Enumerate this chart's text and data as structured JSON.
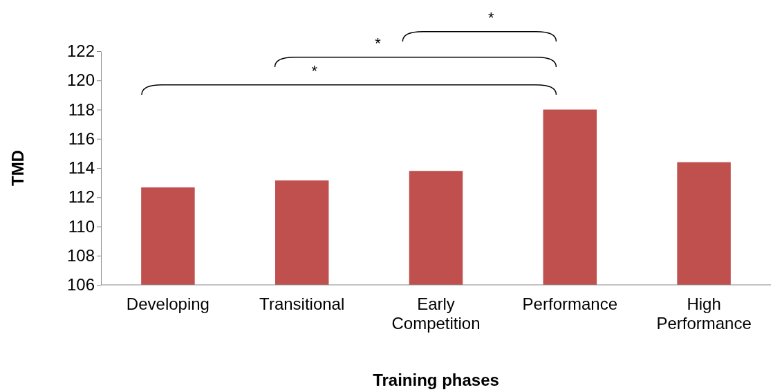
{
  "chart_data": {
    "type": "bar",
    "xlabel": "Training phases",
    "ylabel": "TMD",
    "categories": [
      "Developing",
      "Transitional",
      "Early Competition",
      "Performance",
      "High Performance"
    ],
    "values": [
      112.67,
      113.15,
      113.8,
      118.0,
      114.4
    ],
    "color": "#c0504d",
    "ylim": [
      106,
      122
    ],
    "yticks": [
      106,
      108,
      110,
      112,
      114,
      116,
      118,
      120,
      122
    ],
    "grid": false,
    "annotations": [
      "*",
      "*",
      "*"
    ]
  }
}
